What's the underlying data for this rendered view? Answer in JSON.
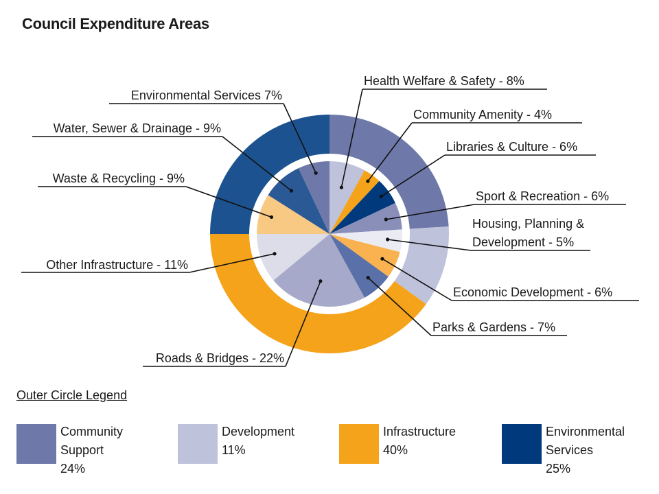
{
  "chart_data": {
    "type": "pie",
    "title": "Council Expenditure Areas",
    "inner_slices": [
      {
        "label": "Health Welfare & Safety",
        "value": 8,
        "label_text": "Health Welfare & Safety - 8%",
        "color": "#bec2db"
      },
      {
        "label": "Community Amenity",
        "value": 4,
        "label_text": "Community Amenity - 4%",
        "color": "#f5a31b"
      },
      {
        "label": "Libraries & Culture",
        "value": 6,
        "label_text": "Libraries & Culture - 6%",
        "color": "#003a7d"
      },
      {
        "label": "Sport & Recreation",
        "value": 6,
        "label_text": "Sport & Recreation - 6%",
        "color": "#8a8fba"
      },
      {
        "label": "Housing, Planning & Development",
        "value": 5,
        "label_text": [
          "Housing, Planning &",
          "Development - 5%"
        ],
        "color": "#eaebf3"
      },
      {
        "label": "Economic Development",
        "value": 6,
        "label_text": "Economic Development - 6%",
        "color": "#f9b24f"
      },
      {
        "label": "Parks & Gardens",
        "value": 7,
        "label_text": "Parks & Gardens - 7%",
        "color": "#5a70a8"
      },
      {
        "label": "Roads & Bridges",
        "value": 22,
        "label_text": "Roads & Bridges - 22%",
        "color": "#a6a9c9"
      },
      {
        "label": "Other Infrastructure",
        "value": 11,
        "label_text": "Other Infrastructure - 11%",
        "color": "#dcdde9"
      },
      {
        "label": "Waste & Recycling",
        "value": 9,
        "label_text": "Waste & Recycling - 9%",
        "color": "#f8c983"
      },
      {
        "label": "Water, Sewer & Drainage",
        "value": 9,
        "label_text": "Water, Sewer & Drainage - 9%",
        "color": "#2a5995"
      },
      {
        "label": "Environmental Services",
        "value": 7,
        "label_text": "Environmental Services 7%",
        "color": "#6e79a9"
      }
    ],
    "outer_ring": [
      {
        "name": "Community Support",
        "value": 24,
        "color": "#6e79a9"
      },
      {
        "name": "Development",
        "value": 11,
        "color": "#bec2db"
      },
      {
        "name": "Infrastructure",
        "value": 40,
        "color": "#f5a31b"
      },
      {
        "name": "Environmental Services",
        "value": 25,
        "color": "#1c528f"
      }
    ],
    "legend": {
      "title": "Outer Circle Legend",
      "items": [
        {
          "lines": [
            "Community",
            "Support",
            "24%"
          ],
          "color": "#6e79a9"
        },
        {
          "lines": [
            "Development",
            "11%"
          ],
          "color": "#bec2db"
        },
        {
          "lines": [
            "Infrastructure",
            "40%"
          ],
          "color": "#f5a31b"
        },
        {
          "lines": [
            "Environmental",
            "Services",
            "25%"
          ],
          "color": "#003a7d"
        }
      ]
    }
  }
}
